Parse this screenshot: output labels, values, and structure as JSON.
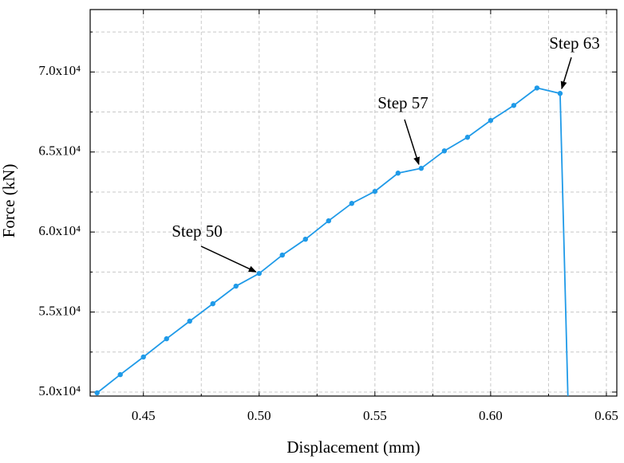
{
  "chart_data": {
    "type": "line",
    "x_label": "Displacement (mm)",
    "y_label": "Force (kN)",
    "x": [
      0.43,
      0.44,
      0.45,
      0.46,
      0.47,
      0.48,
      0.49,
      0.5,
      0.51,
      0.52,
      0.53,
      0.54,
      0.55,
      0.56,
      0.57,
      0.58,
      0.59,
      0.6,
      0.61,
      0.62,
      0.63,
      0.6335
    ],
    "series": [
      {
        "name": "Force",
        "color": "#1f9ae8",
        "values": [
          49950,
          51090,
          52190,
          53330,
          54430,
          55520,
          56620,
          57410,
          58560,
          59550,
          60700,
          61790,
          62540,
          63680,
          63980,
          65070,
          65920,
          66970,
          67910,
          69000,
          68660,
          49000
        ]
      }
    ],
    "xlim": [
      0.427,
      0.6545
    ],
    "ylim": [
      49750,
      73900
    ],
    "xticks": [
      {
        "value": 0.45,
        "label": "0.45"
      },
      {
        "value": 0.5,
        "label": "0.50"
      },
      {
        "value": 0.55,
        "label": "0.55"
      },
      {
        "value": 0.6,
        "label": "0.60"
      },
      {
        "value": 0.65,
        "label": "0.65"
      }
    ],
    "yticks": [
      {
        "value": 50000,
        "label": "5.0x10⁴"
      },
      {
        "value": 55000,
        "label": "5.5x10⁴"
      },
      {
        "value": 60000,
        "label": "6.0x10⁴"
      },
      {
        "value": 65000,
        "label": "6.5x10⁴"
      },
      {
        "value": 70000,
        "label": "7.0x10⁴"
      }
    ],
    "xminorticks": [
      0.475,
      0.525,
      0.575,
      0.625
    ],
    "yminorticks": [
      52500,
      57500,
      62500,
      67500,
      72500
    ],
    "grid": true,
    "annotations": [
      {
        "text": "Step 50"
      },
      {
        "text": "Step 57"
      },
      {
        "text": "Step 63"
      }
    ]
  }
}
